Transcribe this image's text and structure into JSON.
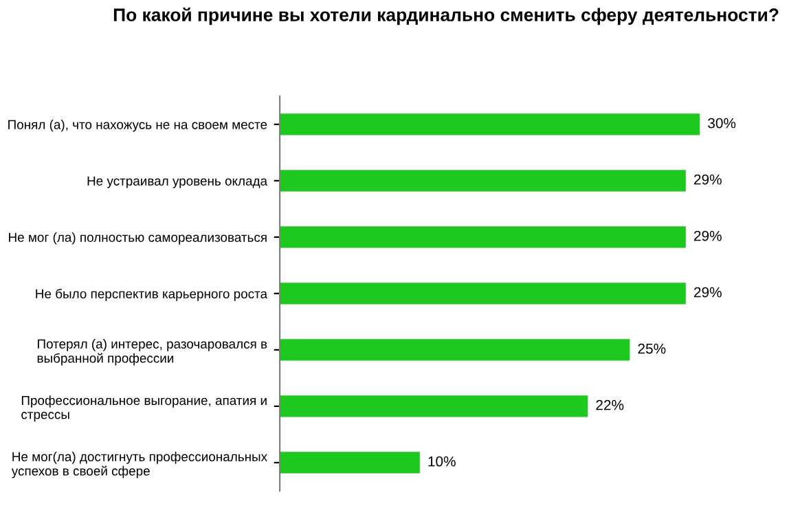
{
  "chart_data": {
    "type": "bar",
    "orientation": "horizontal",
    "title": "По какой причине вы хотели кардинально сменить сферу деятельности?",
    "categories": [
      "Понял (а), что нахожусь не на своем месте",
      "Не устраивал уровень оклада",
      "Не мог (ла) полностью самореализоваться",
      "Не было перспектив карьерного роста",
      "Потерял (а) интерес, разочаровался в\nвыбранной профессии",
      "Профессиональное выгорание, апатия и\nстрессы",
      "Не мог(ла) достигнуть профессиональных\nуспехов в своей сфере"
    ],
    "values": [
      30,
      29,
      29,
      29,
      25,
      22,
      10
    ],
    "value_labels": [
      "30%",
      "29%",
      "29%",
      "29%",
      "25%",
      "22%",
      "10%"
    ],
    "color": "#1ec81e"
  }
}
